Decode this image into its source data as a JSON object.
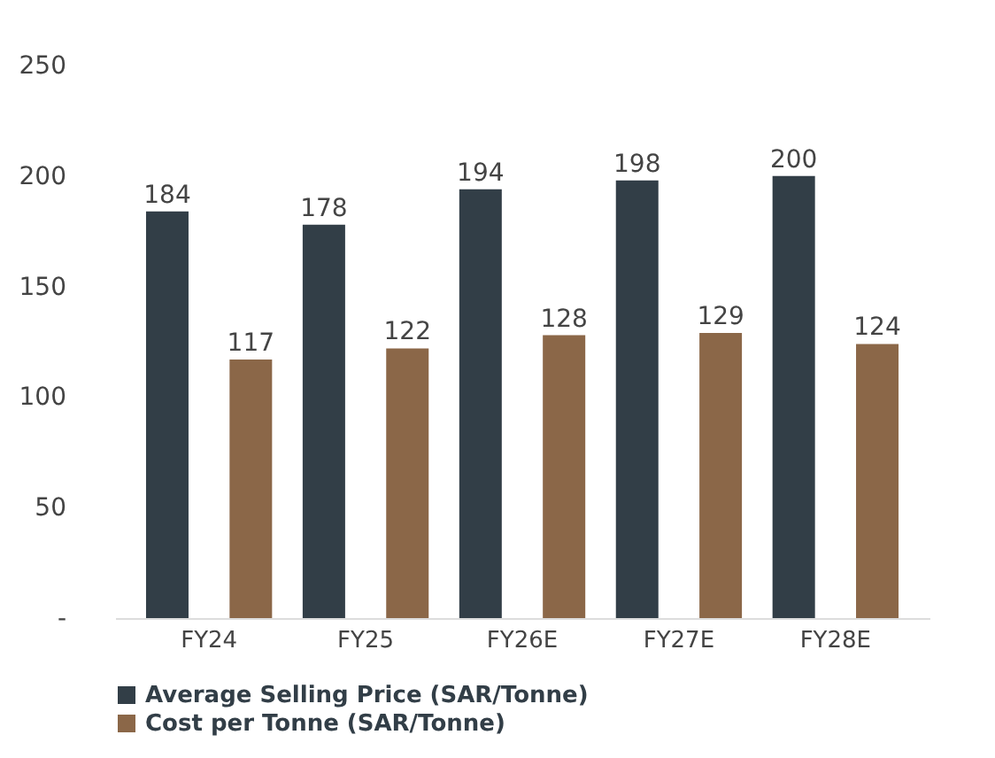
{
  "chart_data": {
    "type": "bar",
    "categories": [
      "FY24",
      "FY25",
      "FY26E",
      "FY27E",
      "FY28E"
    ],
    "series": [
      {
        "name": "Average Selling Price (SAR/Tonne)",
        "color": "#323e47",
        "values": [
          184,
          178,
          194,
          198,
          200
        ]
      },
      {
        "name": "Cost per Tonne (SAR/Tonne)",
        "color": "#8b6748",
        "values": [
          117,
          122,
          128,
          129,
          124
        ]
      }
    ],
    "ylim": [
      0,
      250
    ],
    "yticks": [
      {
        "value": 0,
        "label": "-"
      },
      50,
      100,
      150,
      200,
      250
    ],
    "data_labels": true,
    "grid": false,
    "legend": "bottom"
  }
}
